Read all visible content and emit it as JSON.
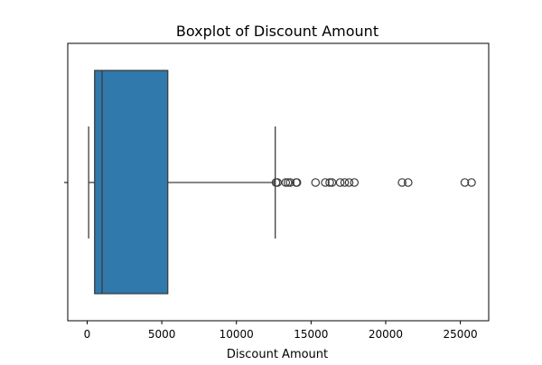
{
  "chart_data": {
    "type": "boxplot",
    "title": "Boxplot of Discount Amount",
    "xlabel": "Discount Amount",
    "ylabel": "",
    "xlim": [
      -1300,
      26900
    ],
    "x_ticks": [
      0,
      5000,
      10000,
      15000,
      20000,
      25000
    ],
    "x_tick_labels": [
      "0",
      "5000",
      "10000",
      "15000",
      "20000",
      "25000"
    ],
    "grid": false,
    "box": {
      "whisker_low": 100,
      "q1": 500,
      "median": 1000,
      "q3": 5400,
      "whisker_high": 12600
    },
    "outliers": [
      12650,
      12750,
      13300,
      13450,
      13600,
      14000,
      14050,
      15300,
      15950,
      16250,
      16400,
      16950,
      17250,
      17550,
      17900,
      21100,
      21500,
      25300,
      25750
    ],
    "colors": {
      "box_fill": "#2f79ad",
      "line": "#3d3d3d",
      "axis": "#000000"
    }
  }
}
